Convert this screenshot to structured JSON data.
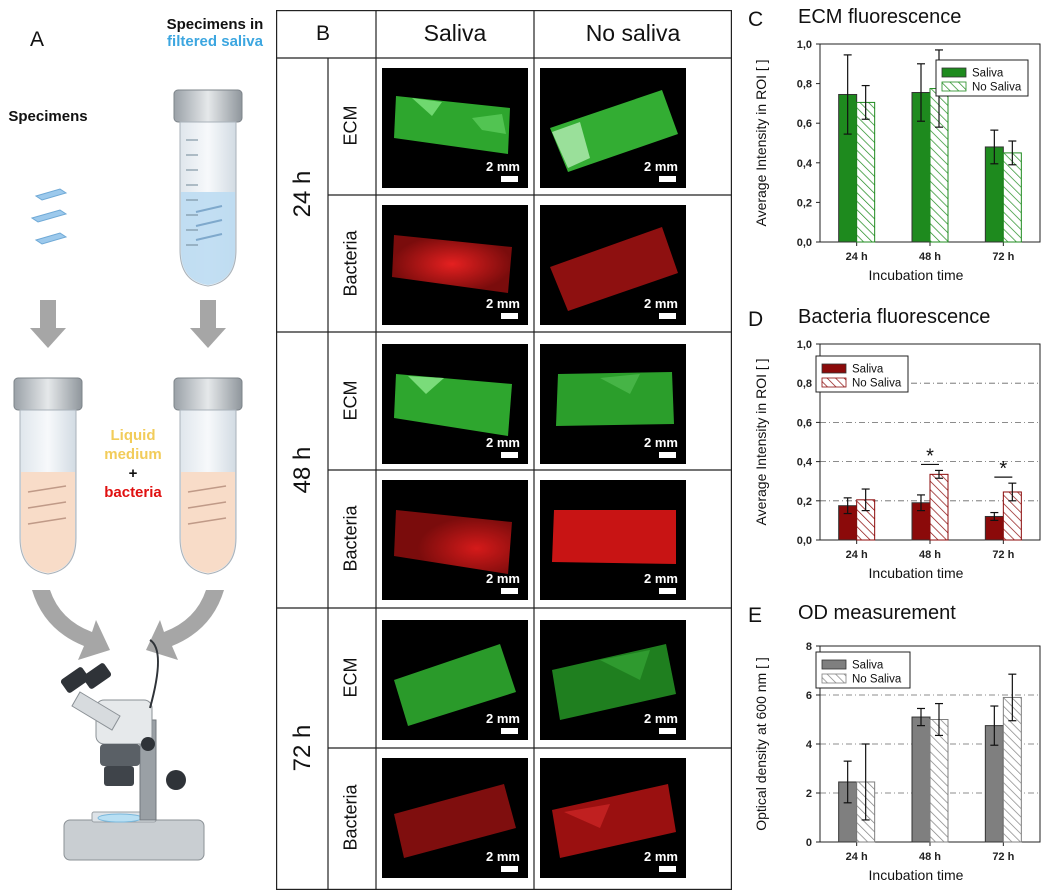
{
  "panels": {
    "a": {
      "letter": "A",
      "specimens_label": "Specimens",
      "saliva_tube_label_line1": "Specimens in",
      "saliva_tube_label_line2": "filtered saliva",
      "medium_line1": "Liquid",
      "medium_line2": "medium",
      "plus": "+",
      "bacteria": "bacteria"
    },
    "b": {
      "letter": "B",
      "col_headers": [
        "Saliva",
        "No saliva"
      ],
      "times": [
        "24 h",
        "48 h",
        "72 h"
      ],
      "rows": [
        "ECM",
        "Bacteria"
      ],
      "scale": "2 mm"
    }
  },
  "colors": {
    "ecm_green": "#1e8a1e",
    "bacteria_red": "#8b0a0a",
    "od_gray": "#7f7f7f",
    "saliva_blue": "#3ca6e0",
    "medium_yellow": "#f2cc5a",
    "bacteria_text_red": "#e01010"
  },
  "chart_data": [
    {
      "id": "c",
      "letter": "C",
      "type": "bar",
      "title": "ECM fluorescence",
      "xlabel": "Incubation time",
      "ylabel": "Average Intensity in ROI [ ]",
      "categories": [
        "24 h",
        "48 h",
        "72 h"
      ],
      "ylim": [
        0,
        1.0
      ],
      "yticks": [
        "0,0",
        "0,2",
        "0,4",
        "0,6",
        "0,8",
        "1,0"
      ],
      "ytick_values": [
        0,
        0.2,
        0.4,
        0.6,
        0.8,
        1.0
      ],
      "legend": "top-right",
      "color": "#1e8a1e",
      "series": [
        {
          "name": "Saliva",
          "values": [
            0.745,
            0.755,
            0.48
          ],
          "errors": [
            0.2,
            0.145,
            0.085
          ]
        },
        {
          "name": "No Saliva",
          "values": [
            0.705,
            0.775,
            0.45
          ],
          "errors": [
            0.085,
            0.195,
            0.06
          ]
        }
      ],
      "annotations": []
    },
    {
      "id": "d",
      "letter": "D",
      "type": "bar",
      "title": "Bacteria fluorescence",
      "xlabel": "Incubation time",
      "ylabel": "Average Intensity in ROI [ ]",
      "categories": [
        "24 h",
        "48 h",
        "72 h"
      ],
      "ylim": [
        0,
        1.0
      ],
      "yticks": [
        "0,0",
        "0,2",
        "0,4",
        "0,6",
        "0,8",
        "1,0"
      ],
      "ytick_values": [
        0,
        0.2,
        0.4,
        0.6,
        0.8,
        1.0
      ],
      "legend": "top-left",
      "color": "#8b0a0a",
      "series": [
        {
          "name": "Saliva",
          "values": [
            0.175,
            0.19,
            0.12
          ],
          "errors": [
            0.04,
            0.04,
            0.02
          ]
        },
        {
          "name": "No Saliva",
          "values": [
            0.205,
            0.335,
            0.245
          ],
          "errors": [
            0.055,
            0.02,
            0.045
          ]
        }
      ],
      "annotations": [
        {
          "text": "*",
          "category": 1
        },
        {
          "text": "*",
          "category": 2
        }
      ]
    },
    {
      "id": "e",
      "letter": "E",
      "type": "bar",
      "title": "OD measurement",
      "xlabel": "Incubation time",
      "ylabel": "Optical density at 600 nm [ ]",
      "categories": [
        "24 h",
        "48 h",
        "72 h"
      ],
      "ylim": [
        0,
        8
      ],
      "yticks": [
        "0",
        "2",
        "4",
        "6",
        "8"
      ],
      "ytick_values": [
        0,
        2,
        4,
        6,
        8
      ],
      "legend": "top-left",
      "color": "#7f7f7f",
      "series": [
        {
          "name": "Saliva",
          "values": [
            2.45,
            5.1,
            4.75
          ],
          "errors": [
            0.85,
            0.35,
            0.8
          ]
        },
        {
          "name": "No Saliva",
          "values": [
            2.45,
            5.0,
            5.9
          ],
          "errors": [
            1.55,
            0.65,
            0.95
          ]
        }
      ],
      "annotations": []
    }
  ]
}
